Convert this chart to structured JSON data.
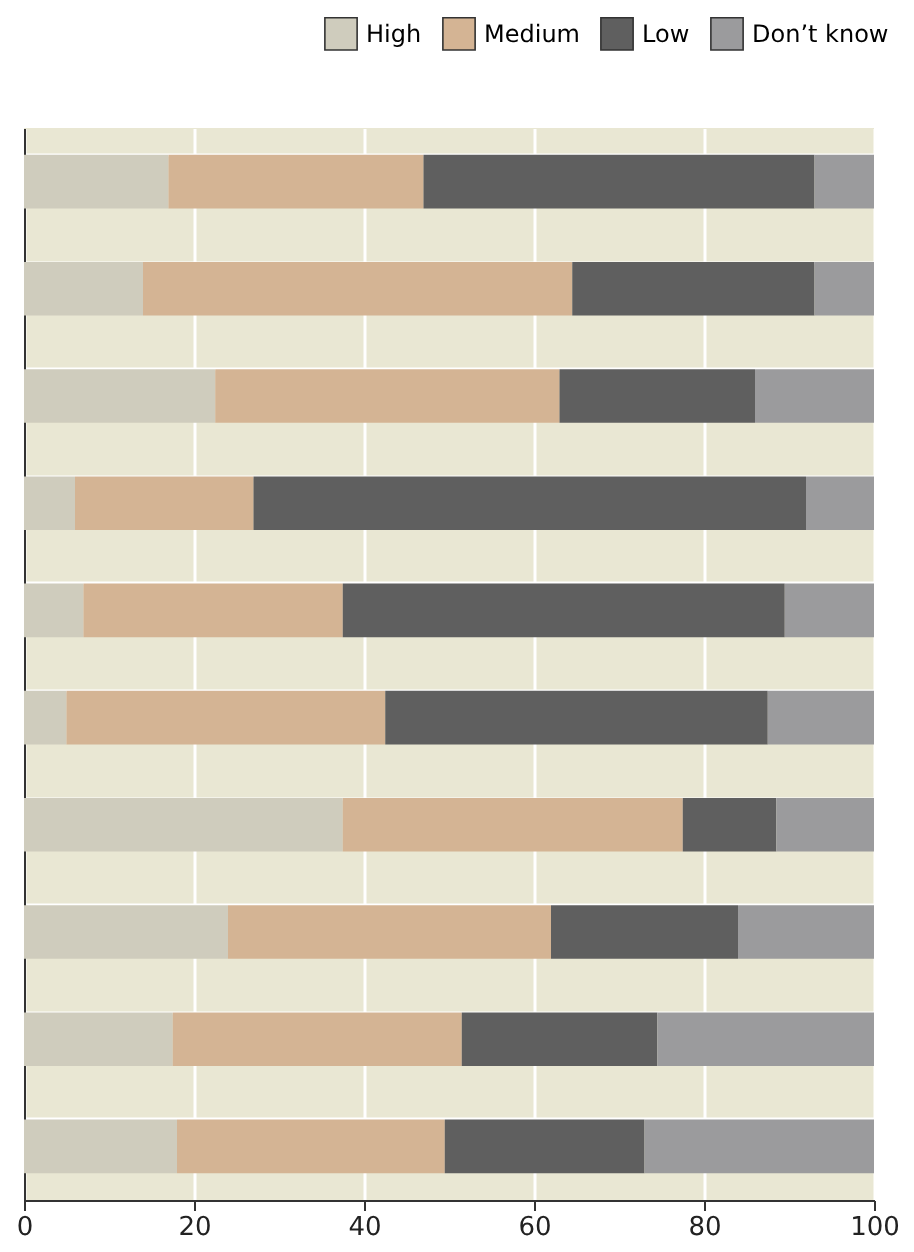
{
  "chart_data": {
    "type": "bar",
    "orientation": "horizontal",
    "stacked": true,
    "categories": [
      null,
      null,
      null,
      null,
      null,
      null,
      null,
      null,
      null,
      null
    ],
    "series": [
      {
        "name": "High",
        "color": "#cfccbd",
        "values": [
          17,
          14,
          22.5,
          6,
          7,
          5,
          37.5,
          24,
          17.5,
          18
        ]
      },
      {
        "name": "Medium",
        "color": "#d4b494",
        "values": [
          30,
          50.5,
          40.5,
          21,
          30.5,
          37.5,
          40,
          38,
          34,
          31.5
        ]
      },
      {
        "name": "Low",
        "color": "#5f5f5f",
        "values": [
          46,
          28.5,
          23,
          65,
          52,
          45,
          11,
          22,
          23,
          23.5
        ]
      },
      {
        "name": "Don’t know",
        "color": "#9b9b9d",
        "values": [
          7,
          7,
          14,
          8,
          10.5,
          12.5,
          11.5,
          16,
          25.5,
          27
        ]
      }
    ],
    "xlim": [
      0,
      100
    ],
    "xticks": [
      0,
      20,
      40,
      60,
      80,
      100
    ],
    "grid": true,
    "legend": "top right"
  }
}
